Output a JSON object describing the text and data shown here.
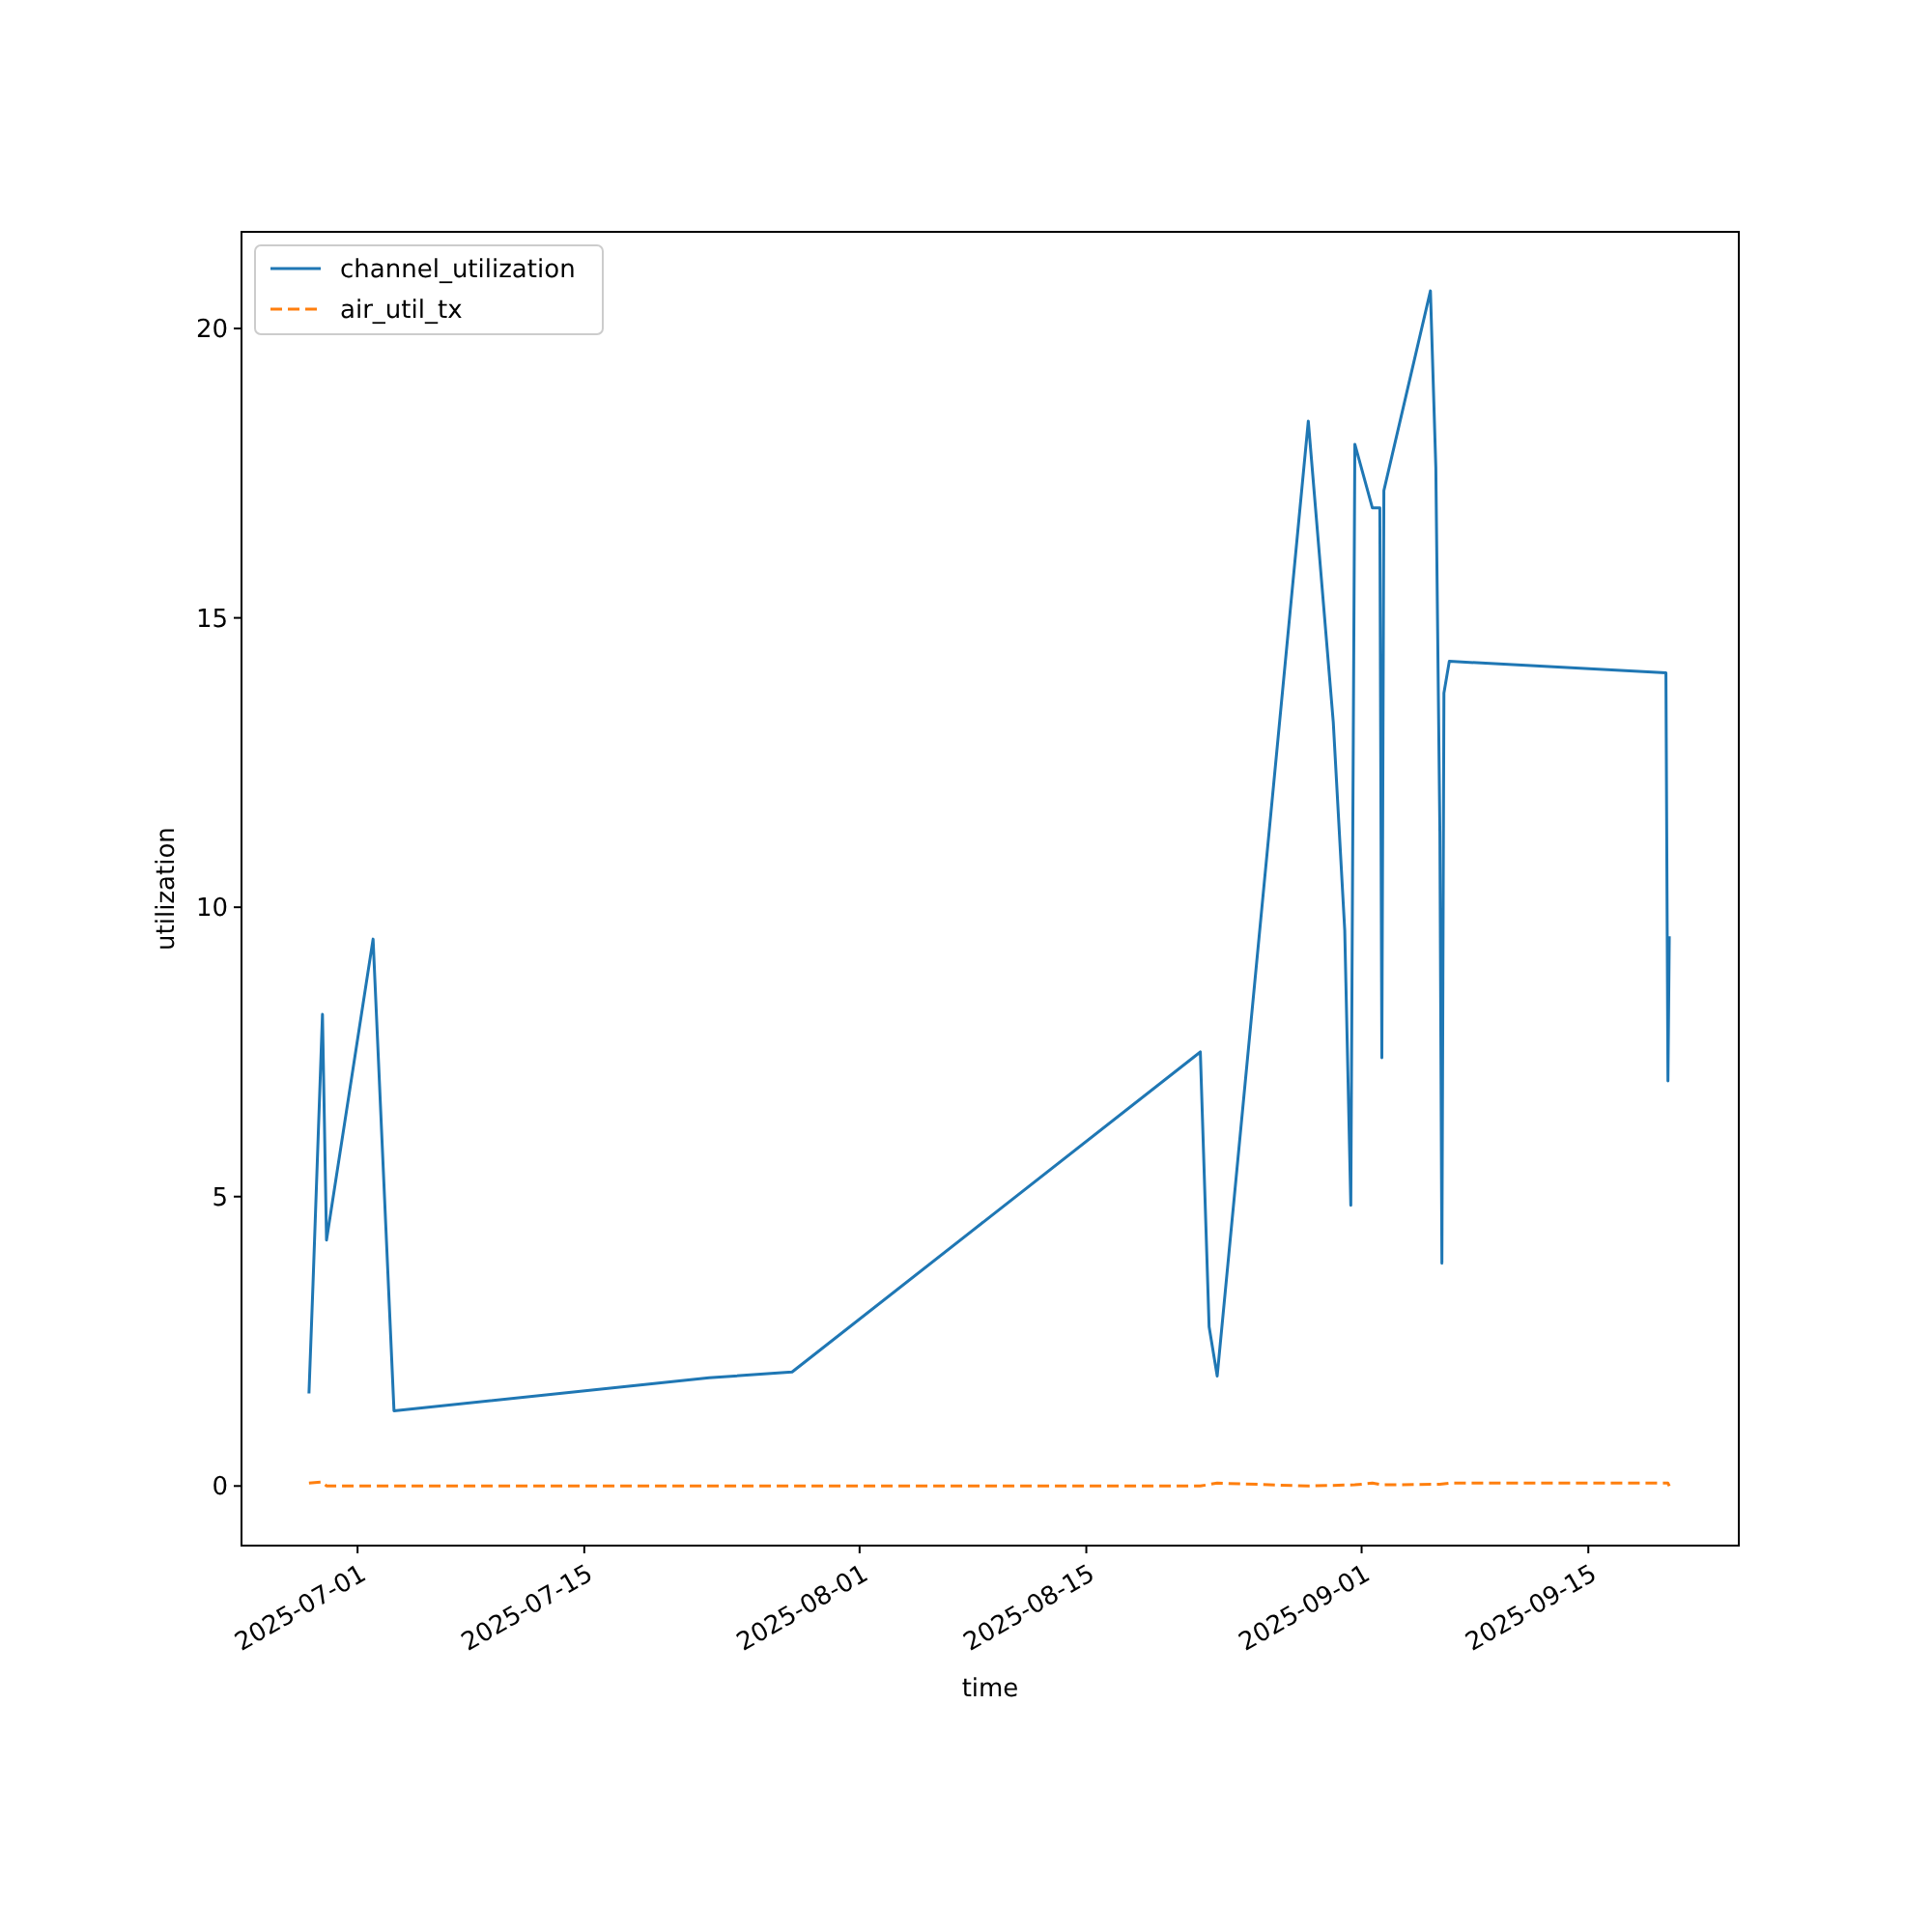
{
  "chart_data": {
    "type": "line",
    "xlabel": "time",
    "ylabel": "utilization",
    "xlim": [
      "2025-06-23T20:00",
      "2025-09-24T07:00"
    ],
    "xticks": [
      {
        "value": "2025-07-01",
        "label": "2025-07-01"
      },
      {
        "value": "2025-07-15",
        "label": "2025-07-15"
      },
      {
        "value": "2025-08-01",
        "label": "2025-08-01"
      },
      {
        "value": "2025-08-15",
        "label": "2025-08-15"
      },
      {
        "value": "2025-09-01",
        "label": "2025-09-01"
      },
      {
        "value": "2025-09-15",
        "label": "2025-09-15"
      }
    ],
    "ylim": [
      -1.03,
      21.67
    ],
    "yticks": [
      0,
      5,
      10,
      15,
      20
    ],
    "legend": "top left",
    "grid": false,
    "series": [
      {
        "name": "channel_utilization",
        "color": "#1f77b4",
        "line_style": "solid",
        "x": [
          "2025-06-28T00:00",
          "2025-06-28T06:00",
          "2025-06-28T20:00",
          "2025-06-29T02:00",
          "2025-07-01T23:00",
          "2025-07-03T06:00",
          "2025-07-22T17:00",
          "2025-07-27T20:00",
          "2025-08-22T01:00",
          "2025-08-22T14:00",
          "2025-08-23T02:00",
          "2025-08-28T17:00",
          "2025-08-30T06:00",
          "2025-08-30T23:00",
          "2025-08-31T08:00",
          "2025-08-31T14:00",
          "2025-09-01T16:00",
          "2025-09-02T03:00",
          "2025-09-02T06:00",
          "2025-09-02T09:00",
          "2025-09-05T06:00",
          "2025-09-05T14:00",
          "2025-09-05T20:00",
          "2025-09-05T23:00",
          "2025-09-06T02:00",
          "2025-09-06T10:00",
          "2025-09-19T19:00",
          "2025-09-19T22:00",
          "2025-09-20T00:00"
        ],
        "values": [
          1.6,
          3.5,
          8.15,
          4.25,
          9.45,
          1.3,
          1.87,
          1.97,
          7.5,
          2.75,
          1.9,
          18.4,
          13.2,
          9.6,
          4.85,
          18.0,
          16.9,
          16.9,
          7.4,
          17.2,
          20.65,
          17.6,
          11.3,
          3.85,
          13.7,
          14.25,
          14.05,
          7.0,
          9.5
        ]
      },
      {
        "name": "air_util_tx",
        "color": "#ff7f0e",
        "line_style": "dashed",
        "x": [
          "2025-06-28T00:00",
          "2025-06-28T20:00",
          "2025-06-29T02:00",
          "2025-08-22T01:00",
          "2025-08-23T02:00",
          "2025-08-28T17:00",
          "2025-08-31T14:00",
          "2025-09-01T16:00",
          "2025-09-02T06:00",
          "2025-09-05T20:00",
          "2025-09-06T10:00",
          "2025-09-19T22:00",
          "2025-09-20T00:00"
        ],
        "values": [
          0.05,
          0.07,
          0,
          0,
          0.05,
          0,
          0.02,
          0.05,
          0.02,
          0.03,
          0.05,
          0.05,
          0
        ]
      }
    ]
  }
}
